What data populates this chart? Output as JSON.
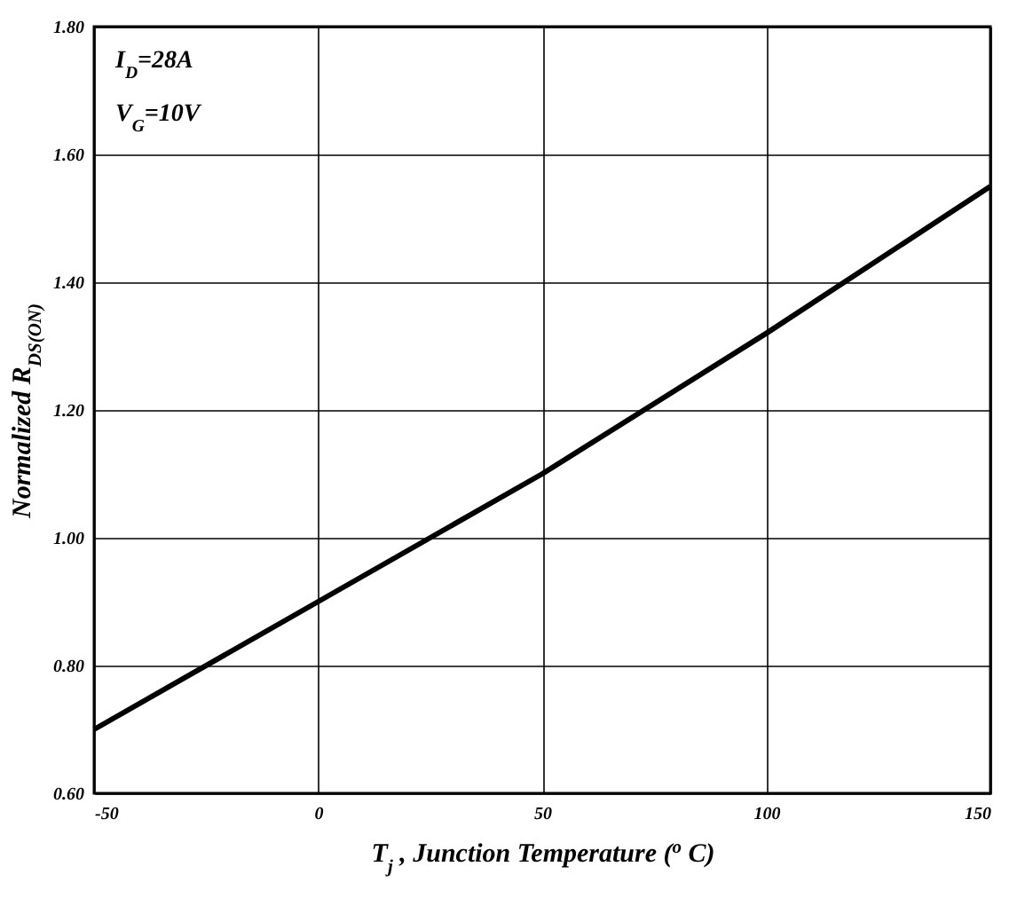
{
  "chart_data": {
    "type": "line",
    "xlabel": "T$_{j}$ , Junction Temperature ($^{o}$ C)",
    "ylabel": "Normalized R$_{DS(ON)}$",
    "annotations": [
      "I$_{D}$=28A",
      "V$_{G}$=10V"
    ],
    "series": [
      {
        "color": "#000000",
        "x": [
          -50,
          0,
          25,
          50,
          100,
          150
        ],
        "values": [
          0.7,
          0.9,
          1.0,
          1.1,
          1.32,
          1.55
        ]
      }
    ],
    "xlim": [
      -50,
      150
    ],
    "xticks": [
      -50,
      0,
      50,
      100,
      150
    ],
    "ylim": [
      0.6,
      1.8
    ],
    "yticks": [
      {
        "value": 0.6,
        "label": "0.60"
      },
      {
        "value": 0.8,
        "label": "0.80"
      },
      {
        "value": 1.0,
        "label": "1.00"
      },
      {
        "value": 1.2,
        "label": "1.20"
      },
      {
        "value": 1.4,
        "label": "1.40"
      },
      {
        "value": 1.6,
        "label": "1.60"
      },
      {
        "value": 1.8,
        "label": "1.80"
      }
    ],
    "grid": true,
    "marker": "none",
    "line_style": "solid"
  }
}
